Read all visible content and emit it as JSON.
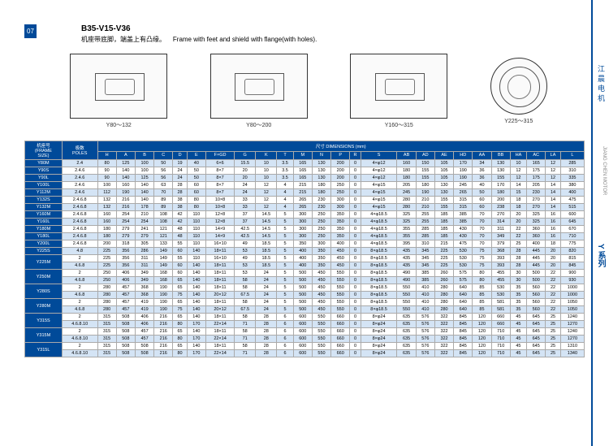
{
  "page_number": "07",
  "title": "B35-V15-V36",
  "subtitle_cn": "机座带底脚，端盖上有凸缘。",
  "subtitle_en": "Frame with feet and shield with flange(with holes).",
  "diagrams": [
    {
      "label": "Y80～132",
      "type": "side"
    },
    {
      "label": "Y80～200",
      "type": "side"
    },
    {
      "label": "Y160～315",
      "type": "side"
    },
    {
      "label": "Y225～315",
      "type": "round"
    }
  ],
  "side_brand_cn": "江晨电机",
  "side_brand_en": "JIANG CHEN MOTOR",
  "side_series": "Y 系列",
  "table_header_top": "尺寸 DIMENSIONS (mm)",
  "frame_header": "机座号\n(FRAME\nSIZE)",
  "poles_header": "极数\nPOLES",
  "cols": [
    "H",
    "A",
    "B",
    "C",
    "D",
    "E",
    "F×GD",
    "G",
    "K",
    "T",
    "M",
    "N",
    "P",
    "R",
    "S",
    "AB",
    "AD",
    "AE",
    "HD",
    "AA",
    "BB",
    "HA",
    "AC",
    "LA",
    "L"
  ],
  "rows": [
    {
      "f": "Y80M",
      "p": "2.4",
      "v": [
        "80",
        "125",
        "100",
        "50",
        "19",
        "40",
        "6×6",
        "15.5",
        "10",
        "3.5",
        "165",
        "130",
        "200",
        "0",
        "4×φ12",
        "160",
        "150",
        "105",
        "170",
        "34",
        "130",
        "10",
        "165",
        "12",
        "285"
      ]
    },
    {
      "f": "Y90S",
      "p": "2.4.6",
      "v": [
        "90",
        "140",
        "100",
        "56",
        "24",
        "50",
        "8×7",
        "20",
        "10",
        "3.5",
        "165",
        "130",
        "200",
        "0",
        "4×φ12",
        "180",
        "155",
        "105",
        "190",
        "36",
        "130",
        "12",
        "175",
        "12",
        "310"
      ]
    },
    {
      "f": "Y90L",
      "p": "2.4.6",
      "v": [
        "90",
        "140",
        "125",
        "56",
        "24",
        "50",
        "8×7",
        "20",
        "10",
        "3.5",
        "165",
        "130",
        "200",
        "0",
        "4×φ12",
        "180",
        "155",
        "105",
        "190",
        "36",
        "155",
        "12",
        "175",
        "12",
        "335"
      ]
    },
    {
      "f": "Y100L",
      "p": "2.4.6",
      "v": [
        "100",
        "160",
        "140",
        "63",
        "28",
        "60",
        "8×7",
        "24",
        "12",
        "4",
        "215",
        "180",
        "250",
        "0",
        "4×φ15",
        "205",
        "180",
        "130",
        "245",
        "40",
        "170",
        "14",
        "205",
        "14",
        "380"
      ]
    },
    {
      "f": "Y112M",
      "p": "2.4.6",
      "v": [
        "112",
        "190",
        "140",
        "70",
        "28",
        "60",
        "8×7",
        "24",
        "12",
        "4",
        "215",
        "180",
        "250",
        "0",
        "4×φ15",
        "245",
        "190",
        "130",
        "265",
        "50",
        "180",
        "15",
        "230",
        "14",
        "400"
      ]
    },
    {
      "f": "Y132S",
      "p": "2.4.6.8",
      "v": [
        "132",
        "216",
        "140",
        "89",
        "38",
        "80",
        "10×8",
        "33",
        "12",
        "4",
        "265",
        "230",
        "300",
        "0",
        "4×φ15",
        "280",
        "210",
        "155",
        "315",
        "60",
        "200",
        "18",
        "270",
        "14",
        "475"
      ]
    },
    {
      "f": "Y132M",
      "p": "2.4.6.8",
      "v": [
        "132",
        "216",
        "178",
        "89",
        "38",
        "80",
        "10×8",
        "33",
        "12",
        "4",
        "265",
        "230",
        "300",
        "0",
        "4×φ15",
        "280",
        "210",
        "155",
        "315",
        "60",
        "238",
        "18",
        "270",
        "14",
        "515"
      ]
    },
    {
      "f": "Y160M",
      "p": "2.4.6.8",
      "v": [
        "160",
        "254",
        "210",
        "108",
        "42",
        "110",
        "12×8",
        "37",
        "14.5",
        "5",
        "300",
        "250",
        "350",
        "0",
        "4×φ18.5",
        "325",
        "255",
        "185",
        "385",
        "70",
        "270",
        "20",
        "325",
        "16",
        "600"
      ]
    },
    {
      "f": "Y160L",
      "p": "2.4.6.8",
      "v": [
        "160",
        "254",
        "254",
        "108",
        "42",
        "110",
        "12×8",
        "37",
        "14.5",
        "5",
        "300",
        "250",
        "350",
        "0",
        "4×φ18.5",
        "325",
        "255",
        "185",
        "385",
        "70",
        "314",
        "20",
        "325",
        "16",
        "645"
      ]
    },
    {
      "f": "Y180M",
      "p": "2.4.6.8",
      "v": [
        "180",
        "279",
        "241",
        "121",
        "48",
        "110",
        "14×9",
        "42.5",
        "14.5",
        "5",
        "300",
        "250",
        "350",
        "0",
        "4×φ18.5",
        "355",
        "285",
        "185",
        "430",
        "70",
        "311",
        "22",
        "360",
        "16",
        "670"
      ]
    },
    {
      "f": "Y180L",
      "p": "2.4.6.8",
      "v": [
        "180",
        "279",
        "279",
        "121",
        "48",
        "110",
        "14×9",
        "42.5",
        "14.5",
        "5",
        "300",
        "250",
        "350",
        "0",
        "4×φ18.5",
        "355",
        "285",
        "185",
        "430",
        "70",
        "349",
        "22",
        "360",
        "16",
        "710"
      ]
    },
    {
      "f": "Y200L",
      "p": "2.4.6.8",
      "v": [
        "200",
        "318",
        "305",
        "133",
        "55",
        "110",
        "16×10",
        "49",
        "18.5",
        "5",
        "350",
        "300",
        "400",
        "0",
        "4×φ18.5",
        "395",
        "310",
        "215",
        "475",
        "70",
        "379",
        "25",
        "400",
        "18",
        "775"
      ]
    },
    {
      "f": "Y225S",
      "p": "4.8",
      "v": [
        "225",
        "356",
        "286",
        "149",
        "60",
        "140",
        "18×11",
        "53",
        "18.5",
        "5",
        "400",
        "350",
        "450",
        "0",
        "8×φ18.5",
        "435",
        "345",
        "225",
        "530",
        "75",
        "368",
        "28",
        "445",
        "20",
        "820"
      ]
    },
    {
      "f": "Y225M",
      "p": "2",
      "v": [
        "225",
        "356",
        "311",
        "149",
        "55",
        "110",
        "16×10",
        "49",
        "18.5",
        "5",
        "400",
        "350",
        "450",
        "0",
        "8×φ18.5",
        "435",
        "345",
        "225",
        "530",
        "75",
        "393",
        "28",
        "445",
        "20",
        "815"
      ]
    },
    {
      "f": "Y225M",
      "p": "4.6.8",
      "v": [
        "225",
        "356",
        "311",
        "149",
        "60",
        "140",
        "18×11",
        "53",
        "18.5",
        "5",
        "400",
        "350",
        "450",
        "0",
        "8×φ18.5",
        "435",
        "345",
        "225",
        "530",
        "75",
        "393",
        "28",
        "445",
        "20",
        "845"
      ]
    },
    {
      "f": "Y250M",
      "p": "2",
      "v": [
        "250",
        "406",
        "349",
        "168",
        "60",
        "140",
        "18×11",
        "53",
        "24",
        "5",
        "500",
        "450",
        "550",
        "0",
        "8×φ18.5",
        "490",
        "385",
        "260",
        "575",
        "80",
        "455",
        "30",
        "500",
        "22",
        "900"
      ]
    },
    {
      "f": "Y250M",
      "p": "4.6.8",
      "v": [
        "250",
        "406",
        "349",
        "168",
        "65",
        "140",
        "18×11",
        "58",
        "24",
        "5",
        "500",
        "450",
        "550",
        "0",
        "8×φ18.5",
        "490",
        "385",
        "260",
        "575",
        "80",
        "455",
        "30",
        "500",
        "22",
        "930"
      ]
    },
    {
      "f": "Y280S",
      "p": "2",
      "v": [
        "280",
        "457",
        "368",
        "190",
        "65",
        "140",
        "18×11",
        "58",
        "24",
        "5",
        "500",
        "450",
        "550",
        "0",
        "8×φ18.5",
        "550",
        "410",
        "280",
        "640",
        "85",
        "530",
        "35",
        "560",
        "22",
        "1000"
      ]
    },
    {
      "f": "Y280S",
      "p": "4.6.8",
      "v": [
        "280",
        "457",
        "368",
        "190",
        "75",
        "140",
        "20×12",
        "67.5",
        "24",
        "5",
        "500",
        "450",
        "550",
        "0",
        "8×φ18.5",
        "550",
        "410",
        "280",
        "640",
        "85",
        "530",
        "35",
        "560",
        "22",
        "1000"
      ]
    },
    {
      "f": "Y280M",
      "p": "2",
      "v": [
        "280",
        "457",
        "419",
        "190",
        "65",
        "140",
        "18×11",
        "58",
        "24",
        "5",
        "500",
        "450",
        "550",
        "0",
        "8×φ18.5",
        "550",
        "410",
        "280",
        "640",
        "85",
        "581",
        "35",
        "560",
        "22",
        "1050"
      ]
    },
    {
      "f": "Y280M",
      "p": "4.6.8",
      "v": [
        "280",
        "457",
        "419",
        "190",
        "75",
        "140",
        "20×12",
        "67.5",
        "24",
        "5",
        "500",
        "450",
        "550",
        "0",
        "8×φ18.5",
        "550",
        "410",
        "280",
        "640",
        "85",
        "581",
        "35",
        "560",
        "22",
        "1050"
      ]
    },
    {
      "f": "Y315S",
      "p": "2",
      "v": [
        "315",
        "508",
        "406",
        "216",
        "65",
        "140",
        "18×11",
        "58",
        "28",
        "6",
        "600",
        "550",
        "660",
        "0",
        "8×φ24",
        "635",
        "576",
        "322",
        "845",
        "120",
        "660",
        "45",
        "645",
        "25",
        "1240"
      ]
    },
    {
      "f": "Y315S",
      "p": "4.6.8.10",
      "v": [
        "315",
        "508",
        "406",
        "216",
        "80",
        "170",
        "22×14",
        "71",
        "28",
        "6",
        "600",
        "550",
        "660",
        "0",
        "8×φ24",
        "635",
        "576",
        "322",
        "845",
        "120",
        "660",
        "45",
        "645",
        "25",
        "1270"
      ]
    },
    {
      "f": "Y315M",
      "p": "2",
      "v": [
        "315",
        "508",
        "457",
        "216",
        "65",
        "140",
        "18×11",
        "58",
        "28",
        "6",
        "600",
        "550",
        "660",
        "0",
        "8×φ24",
        "635",
        "576",
        "322",
        "845",
        "120",
        "710",
        "45",
        "645",
        "25",
        "1240"
      ]
    },
    {
      "f": "Y315M",
      "p": "4.6.8.10",
      "v": [
        "315",
        "508",
        "457",
        "216",
        "80",
        "170",
        "22×14",
        "71",
        "28",
        "6",
        "600",
        "550",
        "660",
        "0",
        "8×φ24",
        "635",
        "576",
        "322",
        "845",
        "120",
        "710",
        "45",
        "645",
        "25",
        "1270"
      ]
    },
    {
      "f": "Y315L",
      "p": "2",
      "v": [
        "315",
        "508",
        "508",
        "216",
        "65",
        "140",
        "18×11",
        "58",
        "28",
        "6",
        "600",
        "550",
        "660",
        "0",
        "8×φ24",
        "635",
        "576",
        "322",
        "845",
        "120",
        "710",
        "45",
        "645",
        "25",
        "1310"
      ]
    },
    {
      "f": "Y315L",
      "p": "4.6.8.10",
      "v": [
        "315",
        "508",
        "508",
        "216",
        "80",
        "170",
        "22×14",
        "71",
        "28",
        "6",
        "600",
        "550",
        "660",
        "0",
        "8×φ24",
        "635",
        "576",
        "322",
        "845",
        "120",
        "710",
        "45",
        "645",
        "25",
        "1340"
      ]
    }
  ],
  "colors": {
    "header": "#004a99",
    "row_alt": "#d4e4f5",
    "border": "#aaaaaa"
  }
}
